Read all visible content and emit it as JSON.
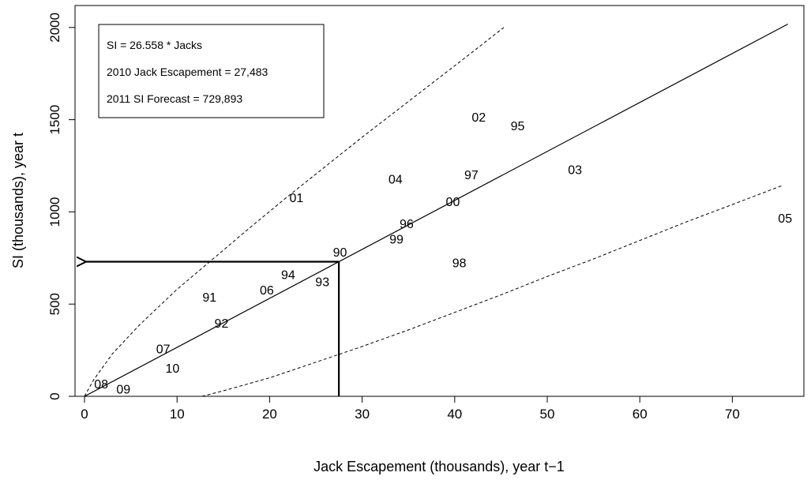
{
  "chart_data": {
    "type": "scatter",
    "title": "",
    "xlabel": "Jack Escapement (thousands), year t−1",
    "ylabel": "SI (thousands), year t",
    "xlim": [
      0,
      78
    ],
    "ylim": [
      0,
      2030
    ],
    "x_ticks": [
      0,
      10,
      20,
      30,
      40,
      50,
      60,
      70
    ],
    "y_ticks": [
      0,
      500,
      1000,
      1500,
      2000
    ],
    "grid": false,
    "legend_position": "top-left",
    "legend": [
      "SI = 26.558 * Jacks",
      "2010 Jack Escapement = 27,483",
      "2011 SI Forecast = 729,893"
    ],
    "points": [
      {
        "label": "08",
        "x": 1.8,
        "y": 63
      },
      {
        "label": "09",
        "x": 4.2,
        "y": 35
      },
      {
        "label": "10",
        "x": 9.5,
        "y": 148
      },
      {
        "label": "07",
        "x": 8.5,
        "y": 253
      },
      {
        "label": "92",
        "x": 14.8,
        "y": 392
      },
      {
        "label": "91",
        "x": 13.5,
        "y": 532
      },
      {
        "label": "06",
        "x": 19.7,
        "y": 572
      },
      {
        "label": "94",
        "x": 22.0,
        "y": 655
      },
      {
        "label": "93",
        "x": 25.7,
        "y": 617
      },
      {
        "label": "90",
        "x": 27.6,
        "y": 777
      },
      {
        "label": "01",
        "x": 22.9,
        "y": 1072
      },
      {
        "label": "99",
        "x": 33.7,
        "y": 847
      },
      {
        "label": "96",
        "x": 34.8,
        "y": 932
      },
      {
        "label": "04",
        "x": 33.6,
        "y": 1173
      },
      {
        "label": "00",
        "x": 39.8,
        "y": 1050
      },
      {
        "label": "97",
        "x": 41.8,
        "y": 1197
      },
      {
        "label": "98",
        "x": 40.5,
        "y": 720
      },
      {
        "label": "02",
        "x": 42.6,
        "y": 1510
      },
      {
        "label": "95",
        "x": 46.8,
        "y": 1462
      },
      {
        "label": "03",
        "x": 53.0,
        "y": 1225
      },
      {
        "label": "05",
        "x": 75.7,
        "y": 960
      }
    ],
    "fit_line": {
      "slope": 26.558,
      "x": [
        0,
        76
      ]
    },
    "upper_bound": [
      [
        0,
        0
      ],
      [
        1,
        90
      ],
      [
        3,
        230
      ],
      [
        6,
        390
      ],
      [
        10,
        580
      ],
      [
        14,
        750
      ],
      [
        18,
        920
      ],
      [
        22,
        1085
      ],
      [
        26,
        1245
      ],
      [
        30,
        1405
      ],
      [
        34,
        1560
      ],
      [
        38,
        1715
      ],
      [
        42,
        1870
      ],
      [
        45.3,
        2000
      ]
    ],
    "lower_bound": [
      [
        12.7,
        0
      ],
      [
        15,
        30
      ],
      [
        20,
        100
      ],
      [
        25,
        185
      ],
      [
        30,
        270
      ],
      [
        35,
        360
      ],
      [
        40,
        455
      ],
      [
        45,
        550
      ],
      [
        50,
        650
      ],
      [
        55,
        745
      ],
      [
        60,
        845
      ],
      [
        65,
        945
      ],
      [
        70,
        1040
      ],
      [
        75.5,
        1145
      ]
    ],
    "forecast": {
      "x": 27.483,
      "y": 729.893
    }
  }
}
